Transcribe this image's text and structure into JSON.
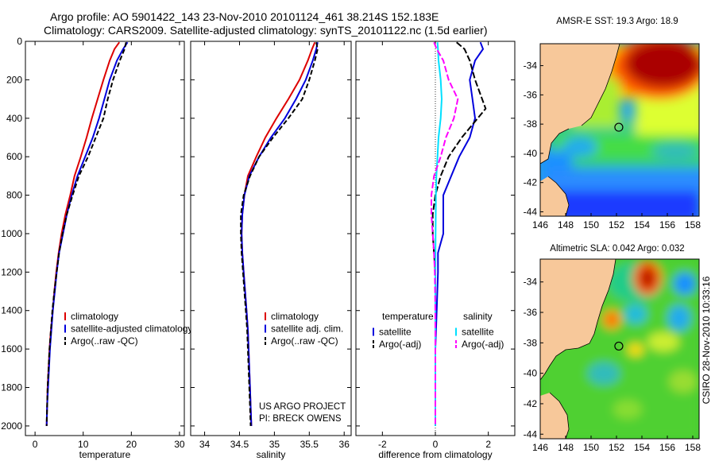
{
  "header": {
    "line1": "Argo profile: AO 5901422_143 23-Nov-2010 20101124_461 38.214S 152.183E",
    "line2": "Climatology: CARS2009. Satellite-adjusted climatology: synTS_20101122.nc (1.5d earlier)"
  },
  "credits": {
    "project": "US ARGO PROJECT",
    "pi": "PI: BRECK OWENS",
    "stamp": "CSIRO 28-Nov-2010 10:33:16"
  },
  "colors": {
    "climatology": "#dd0000",
    "satellite": "#0000dd",
    "argo": "#000000",
    "temp_diff_sat": "#00e0ff",
    "sal_diff_argo": "#ff00ff",
    "land": "#f7c89a"
  },
  "chart_data": [
    {
      "type": "line",
      "xlabel": "temperature",
      "ylabel": "",
      "xlim": [
        -2,
        31
      ],
      "ylim": [
        2050,
        0
      ],
      "xticks": [
        "0",
        "10",
        "20",
        "30"
      ],
      "yticks": [
        "0",
        "200",
        "400",
        "600",
        "800",
        "1000",
        "1200",
        "1400",
        "1600",
        "1800",
        "2000"
      ],
      "legend_position": "lower-right",
      "series": [
        {
          "name": "climatology",
          "color_key": "climatology",
          "dash": "",
          "points": [
            [
              17.5,
              5
            ],
            [
              16.5,
              40
            ],
            [
              15.5,
              100
            ],
            [
              14.2,
              200
            ],
            [
              13.0,
              300
            ],
            [
              11.8,
              400
            ],
            [
              10.7,
              500
            ],
            [
              9.5,
              600
            ],
            [
              8.2,
              700
            ],
            [
              7.3,
              800
            ],
            [
              6.3,
              900
            ],
            [
              5.5,
              1000
            ],
            [
              4.9,
              1100
            ],
            [
              4.4,
              1200
            ],
            [
              4.0,
              1300
            ],
            [
              3.7,
              1400
            ],
            [
              3.3,
              1500
            ],
            [
              3.0,
              1600
            ],
            [
              2.8,
              1700
            ],
            [
              2.6,
              1800
            ],
            [
              2.5,
              1900
            ],
            [
              2.4,
              2000
            ]
          ]
        },
        {
          "name": "satellite-adjusted climatology",
          "color_key": "satellite",
          "dash": "",
          "points": [
            [
              19.2,
              5
            ],
            [
              18.3,
              40
            ],
            [
              17.0,
              100
            ],
            [
              15.5,
              200
            ],
            [
              14.4,
              300
            ],
            [
              13.3,
              400
            ],
            [
              12.0,
              500
            ],
            [
              10.4,
              600
            ],
            [
              8.8,
              700
            ],
            [
              7.6,
              800
            ],
            [
              6.6,
              900
            ],
            [
              5.8,
              1000
            ],
            [
              5.0,
              1100
            ],
            [
              4.5,
              1200
            ],
            [
              4.1,
              1300
            ],
            [
              3.7,
              1400
            ],
            [
              3.4,
              1500
            ],
            [
              3.1,
              1600
            ],
            [
              2.9,
              1700
            ],
            [
              2.7,
              1800
            ],
            [
              2.5,
              1900
            ],
            [
              2.4,
              2000
            ]
          ]
        },
        {
          "name": "Argo(..raw -QC)",
          "color_key": "argo",
          "dash": "6,3",
          "points": [
            [
              18.9,
              5
            ],
            [
              18.6,
              40
            ],
            [
              17.6,
              100
            ],
            [
              16.2,
              200
            ],
            [
              15.1,
              300
            ],
            [
              14.2,
              400
            ],
            [
              12.6,
              500
            ],
            [
              11.0,
              600
            ],
            [
              9.1,
              700
            ],
            [
              7.8,
              800
            ],
            [
              6.6,
              900
            ],
            [
              5.7,
              1000
            ],
            [
              5.0,
              1100
            ],
            [
              4.5,
              1200
            ],
            [
              4.0,
              1300
            ],
            [
              3.6,
              1400
            ],
            [
              3.3,
              1500
            ],
            [
              3.0,
              1600
            ],
            [
              2.8,
              1700
            ],
            [
              2.6,
              1800
            ],
            [
              2.5,
              1900
            ],
            [
              2.4,
              2000
            ]
          ]
        }
      ]
    },
    {
      "type": "line",
      "xlabel": "salinity",
      "ylabel": "",
      "xlim": [
        33.8,
        36.1
      ],
      "ylim": [
        2050,
        0
      ],
      "xticks": [
        "34",
        "34.5",
        "35",
        "35.5",
        "36"
      ],
      "legend_position": "lower-right",
      "series": [
        {
          "name": "climatology",
          "color_key": "climatology",
          "dash": "",
          "points": [
            [
              35.58,
              5
            ],
            [
              35.54,
              40
            ],
            [
              35.48,
              100
            ],
            [
              35.36,
              200
            ],
            [
              35.2,
              300
            ],
            [
              35.03,
              400
            ],
            [
              34.87,
              500
            ],
            [
              34.74,
              600
            ],
            [
              34.62,
              700
            ],
            [
              34.57,
              800
            ],
            [
              34.54,
              900
            ],
            [
              34.53,
              1000
            ],
            [
              34.54,
              1100
            ],
            [
              34.56,
              1200
            ],
            [
              34.58,
              1300
            ],
            [
              34.6,
              1400
            ],
            [
              34.62,
              1500
            ],
            [
              34.63,
              1600
            ],
            [
              34.64,
              1700
            ],
            [
              34.65,
              1800
            ],
            [
              34.66,
              1900
            ],
            [
              34.67,
              2000
            ]
          ]
        },
        {
          "name": "satellite adj. clim.",
          "color_key": "satellite",
          "dash": "",
          "points": [
            [
              35.62,
              5
            ],
            [
              35.6,
              40
            ],
            [
              35.55,
              100
            ],
            [
              35.45,
              200
            ],
            [
              35.31,
              300
            ],
            [
              35.15,
              400
            ],
            [
              34.95,
              500
            ],
            [
              34.78,
              600
            ],
            [
              34.64,
              700
            ],
            [
              34.57,
              800
            ],
            [
              34.54,
              900
            ],
            [
              34.53,
              1000
            ],
            [
              34.54,
              1100
            ],
            [
              34.56,
              1200
            ],
            [
              34.58,
              1300
            ],
            [
              34.6,
              1400
            ],
            [
              34.62,
              1500
            ],
            [
              34.63,
              1600
            ],
            [
              34.64,
              1700
            ],
            [
              34.65,
              1800
            ],
            [
              34.66,
              1900
            ],
            [
              34.67,
              2000
            ]
          ]
        },
        {
          "name": "Argo(..raw -QC)",
          "color_key": "argo",
          "dash": "6,3",
          "points": [
            [
              35.6,
              5
            ],
            [
              35.62,
              40
            ],
            [
              35.58,
              100
            ],
            [
              35.5,
              200
            ],
            [
              35.4,
              300
            ],
            [
              35.2,
              400
            ],
            [
              34.98,
              500
            ],
            [
              34.78,
              600
            ],
            [
              34.65,
              700
            ],
            [
              34.56,
              800
            ],
            [
              34.52,
              900
            ],
            [
              34.52,
              1000
            ],
            [
              34.53,
              1100
            ],
            [
              34.55,
              1200
            ],
            [
              34.57,
              1300
            ],
            [
              34.59,
              1400
            ],
            [
              34.61,
              1500
            ],
            [
              34.62,
              1600
            ],
            [
              34.63,
              1700
            ],
            [
              34.64,
              1800
            ],
            [
              34.65,
              1900
            ],
            [
              34.66,
              2000
            ]
          ]
        }
      ]
    },
    {
      "type": "line",
      "xlabel": "difference from climatology",
      "ylabel": "",
      "xlim": [
        -3,
        3
      ],
      "ylim": [
        2050,
        0
      ],
      "xticks": [
        "-2",
        "0",
        "2"
      ],
      "zero_line": 0,
      "legend_position": "lower",
      "legend_headers": [
        "temperature",
        "salinity"
      ],
      "series": [
        {
          "name": "satellite",
          "group": "temperature",
          "color_key": "satellite",
          "dash": "",
          "points": [
            [
              1.7,
              5
            ],
            [
              1.8,
              40
            ],
            [
              1.5,
              100
            ],
            [
              1.3,
              200
            ],
            [
              1.4,
              300
            ],
            [
              1.5,
              400
            ],
            [
              1.3,
              500
            ],
            [
              0.9,
              600
            ],
            [
              0.6,
              700
            ],
            [
              0.3,
              800
            ],
            [
              0.3,
              900
            ],
            [
              0.3,
              1000
            ],
            [
              0.1,
              1100
            ],
            [
              0.1,
              1200
            ],
            [
              0.05,
              1400
            ],
            [
              0.0,
              1600
            ],
            [
              0.0,
              2000
            ]
          ]
        },
        {
          "name": "Argo(-adj)",
          "group": "temperature",
          "color_key": "argo",
          "dash": "8,3",
          "points": [
            [
              0.8,
              5
            ],
            [
              1.1,
              40
            ],
            [
              1.3,
              100
            ],
            [
              1.5,
              200
            ],
            [
              1.9,
              350
            ],
            [
              1.6,
              400
            ],
            [
              1.3,
              450
            ],
            [
              1.0,
              500
            ],
            [
              0.5,
              600
            ],
            [
              0.2,
              700
            ],
            [
              0.0,
              800
            ],
            [
              -0.1,
              900
            ],
            [
              -0.1,
              1000
            ],
            [
              -0.05,
              1100
            ],
            [
              0.0,
              1200
            ],
            [
              0.0,
              1400
            ],
            [
              0.0,
              2000
            ]
          ]
        },
        {
          "name": "satellite",
          "group": "salinity",
          "color_key": "temp_diff_sat",
          "dash": "",
          "points": [
            [
              0.08,
              5
            ],
            [
              0.1,
              40
            ],
            [
              0.12,
              100
            ],
            [
              0.2,
              200
            ],
            [
              0.24,
              300
            ],
            [
              0.2,
              400
            ],
            [
              0.12,
              500
            ],
            [
              0.08,
              600
            ],
            [
              0.04,
              700
            ],
            [
              0.02,
              800
            ],
            [
              0.01,
              1000
            ],
            [
              0.0,
              1200
            ],
            [
              0.0,
              2000
            ]
          ]
        },
        {
          "name": "Argo(-adj)",
          "group": "salinity",
          "color_key": "sal_diff_argo",
          "dash": "8,3",
          "points": [
            [
              -0.05,
              5
            ],
            [
              0.05,
              40
            ],
            [
              0.3,
              100
            ],
            [
              0.5,
              200
            ],
            [
              0.85,
              300
            ],
            [
              0.7,
              400
            ],
            [
              0.4,
              500
            ],
            [
              0.2,
              600
            ],
            [
              -0.05,
              700
            ],
            [
              -0.15,
              800
            ],
            [
              -0.15,
              900
            ],
            [
              -0.1,
              1000
            ],
            [
              -0.05,
              1100
            ],
            [
              -0.02,
              1200
            ],
            [
              0.0,
              1400
            ],
            [
              0.0,
              2000
            ]
          ]
        }
      ]
    },
    {
      "type": "heatmap",
      "title": "AMSR-E SST: 19.3 Argo: 18.9",
      "xlim": [
        146,
        158.5
      ],
      "ylim": [
        -44.3,
        -32.5
      ],
      "xticks": [
        "146",
        "148",
        "150",
        "152",
        "154",
        "156",
        "158"
      ],
      "yticks": [
        "-34",
        "-36",
        "-38",
        "-40",
        "-42",
        "-44"
      ],
      "marker": [
        152.183,
        -38.214
      ]
    },
    {
      "type": "heatmap",
      "title": "Altimetric SLA: 0.042 Argo: 0.032",
      "xlim": [
        146,
        158.5
      ],
      "ylim": [
        -44.3,
        -32.5
      ],
      "xticks": [
        "146",
        "148",
        "150",
        "152",
        "154",
        "156",
        "158"
      ],
      "yticks": [
        "-34",
        "-36",
        "-38",
        "-40",
        "-42",
        "-44"
      ],
      "marker": [
        152.183,
        -38.214
      ]
    }
  ]
}
